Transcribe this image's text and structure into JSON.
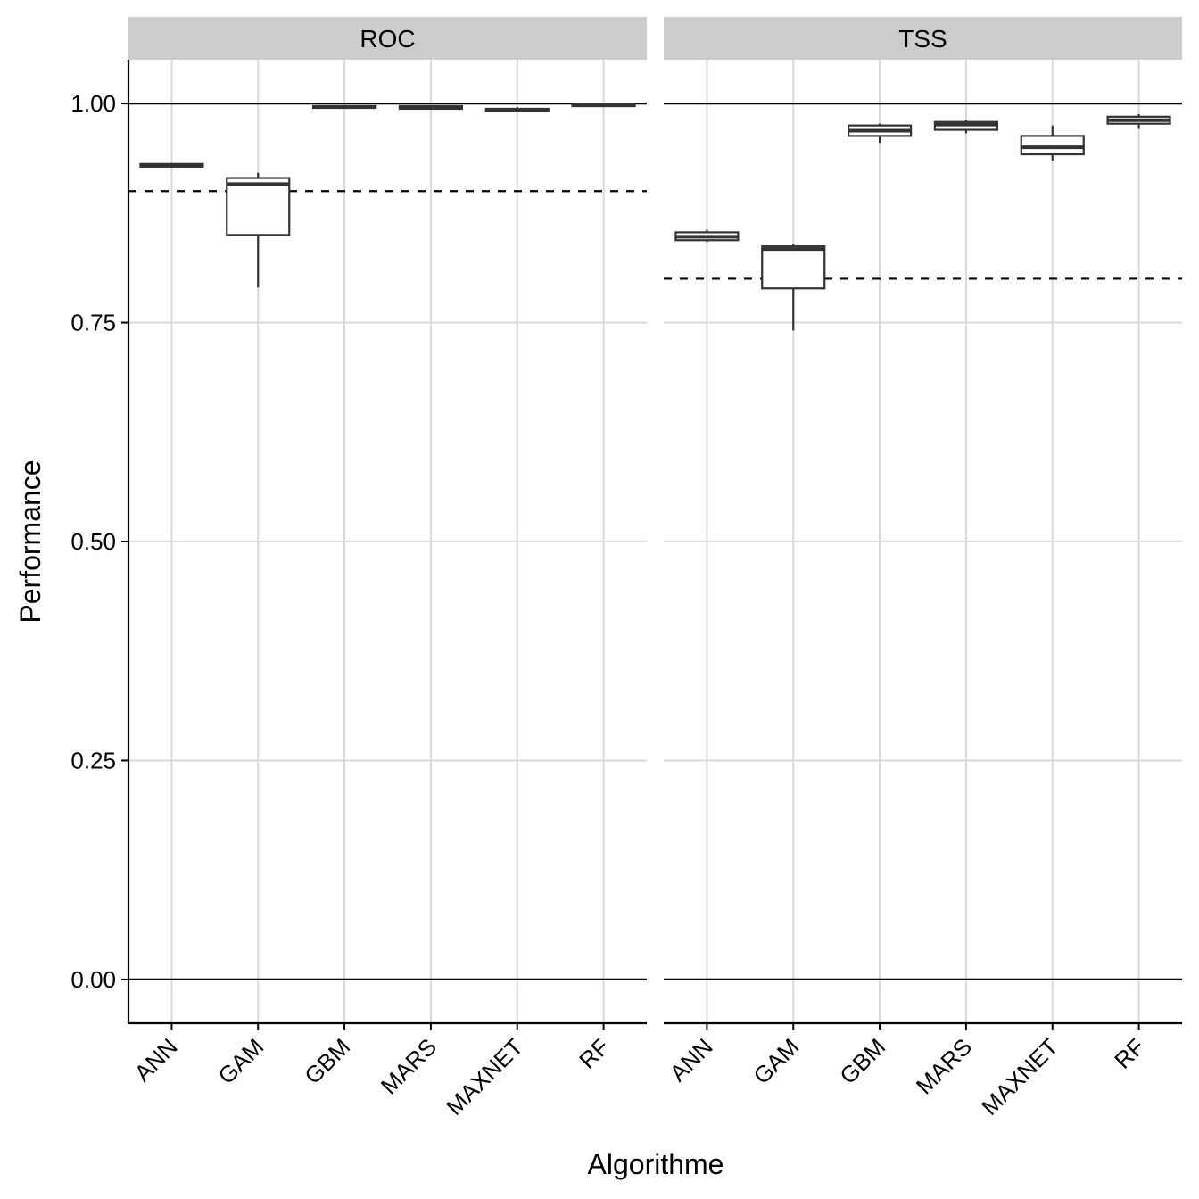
{
  "chart_data": {
    "type": "boxplot",
    "xlabel": "Algorithme",
    "ylabel": "Performance",
    "ylim": [
      -0.05,
      1.05
    ],
    "yticks": [
      "0.00",
      "0.25",
      "0.50",
      "0.75",
      "1.00"
    ],
    "ytick_values": [
      0,
      0.25,
      0.5,
      0.75,
      1.0
    ],
    "categories": [
      "ANN",
      "GAM",
      "GBM",
      "MARS",
      "MAXNET",
      "RF"
    ],
    "grid": true,
    "colors": {
      "strip_background": "#cccccc",
      "grid": "#d9d9d9",
      "box_line": "#333333",
      "reference_line": "#000000"
    },
    "panels": [
      {
        "name": "ROC",
        "solid_lines": [
          0,
          1
        ],
        "dashed_line": 0.9,
        "boxes": [
          {
            "category": "ANN",
            "min": 0.927,
            "q1": 0.928,
            "median": 0.929,
            "q3": 0.931,
            "max": 0.932
          },
          {
            "category": "GAM",
            "min": 0.79,
            "q1": 0.85,
            "median": 0.908,
            "q3": 0.915,
            "max": 0.921
          },
          {
            "category": "GBM",
            "min": 0.994,
            "q1": 0.995,
            "median": 0.996,
            "q3": 0.997,
            "max": 0.998
          },
          {
            "category": "MARS",
            "min": 0.993,
            "q1": 0.994,
            "median": 0.995,
            "q3": 0.997,
            "max": 0.998
          },
          {
            "category": "MAXNET",
            "min": 0.99,
            "q1": 0.991,
            "median": 0.992,
            "q3": 0.994,
            "max": 0.996
          },
          {
            "category": "RF",
            "min": 0.997,
            "q1": 0.997,
            "median": 0.998,
            "q3": 0.998,
            "max": 0.999
          }
        ]
      },
      {
        "name": "TSS",
        "solid_lines": [
          0,
          1
        ],
        "dashed_line": 0.8,
        "boxes": [
          {
            "category": "ANN",
            "min": 0.842,
            "q1": 0.844,
            "median": 0.848,
            "q3": 0.853,
            "max": 0.856
          },
          {
            "category": "GAM",
            "min": 0.741,
            "q1": 0.789,
            "median": 0.834,
            "q3": 0.837,
            "max": 0.84
          },
          {
            "category": "GBM",
            "min": 0.955,
            "q1": 0.963,
            "median": 0.969,
            "q3": 0.975,
            "max": 0.977
          },
          {
            "category": "MARS",
            "min": 0.966,
            "q1": 0.97,
            "median": 0.976,
            "q3": 0.979,
            "max": 0.981
          },
          {
            "category": "MAXNET",
            "min": 0.935,
            "q1": 0.942,
            "median": 0.95,
            "q3": 0.963,
            "max": 0.975
          },
          {
            "category": "RF",
            "min": 0.971,
            "q1": 0.977,
            "median": 0.981,
            "q3": 0.985,
            "max": 0.988
          }
        ]
      }
    ]
  }
}
